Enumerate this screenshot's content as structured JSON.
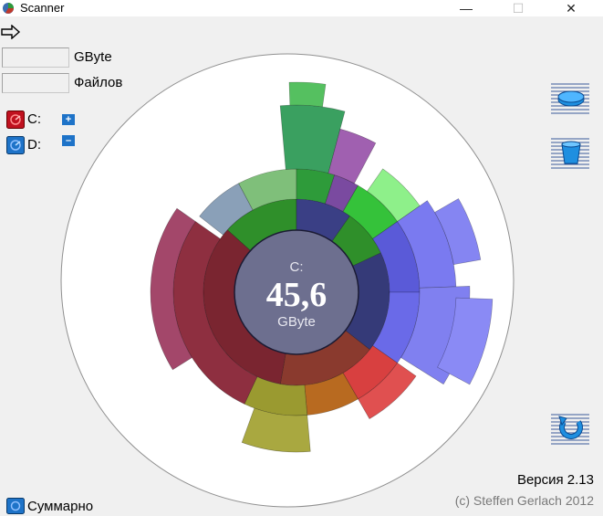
{
  "window": {
    "title": "Scanner",
    "minimize": "—",
    "maximize": "☐",
    "close": "✕"
  },
  "fields": {
    "size_value": "",
    "size_unit": "GByte",
    "files_value": "",
    "files_label": "Файлов"
  },
  "drives": [
    {
      "label": "C:",
      "color": "#c0111f"
    },
    {
      "label": "D:",
      "color": "#1e73c8"
    }
  ],
  "zoom": {
    "in": "+",
    "out": "–"
  },
  "center": {
    "drive": "C:",
    "value": "45,6",
    "unit": "GByte"
  },
  "footer": {
    "version": "Версия 2.13",
    "copyright": "(c) Steffen Gerlach 2012",
    "summary": "Суммарно"
  },
  "icons": {
    "app": "scanner-app-icon",
    "menu": "arrow-right-icon",
    "side": [
      "disk-icon",
      "trash-icon",
      "refresh-icon"
    ]
  }
}
